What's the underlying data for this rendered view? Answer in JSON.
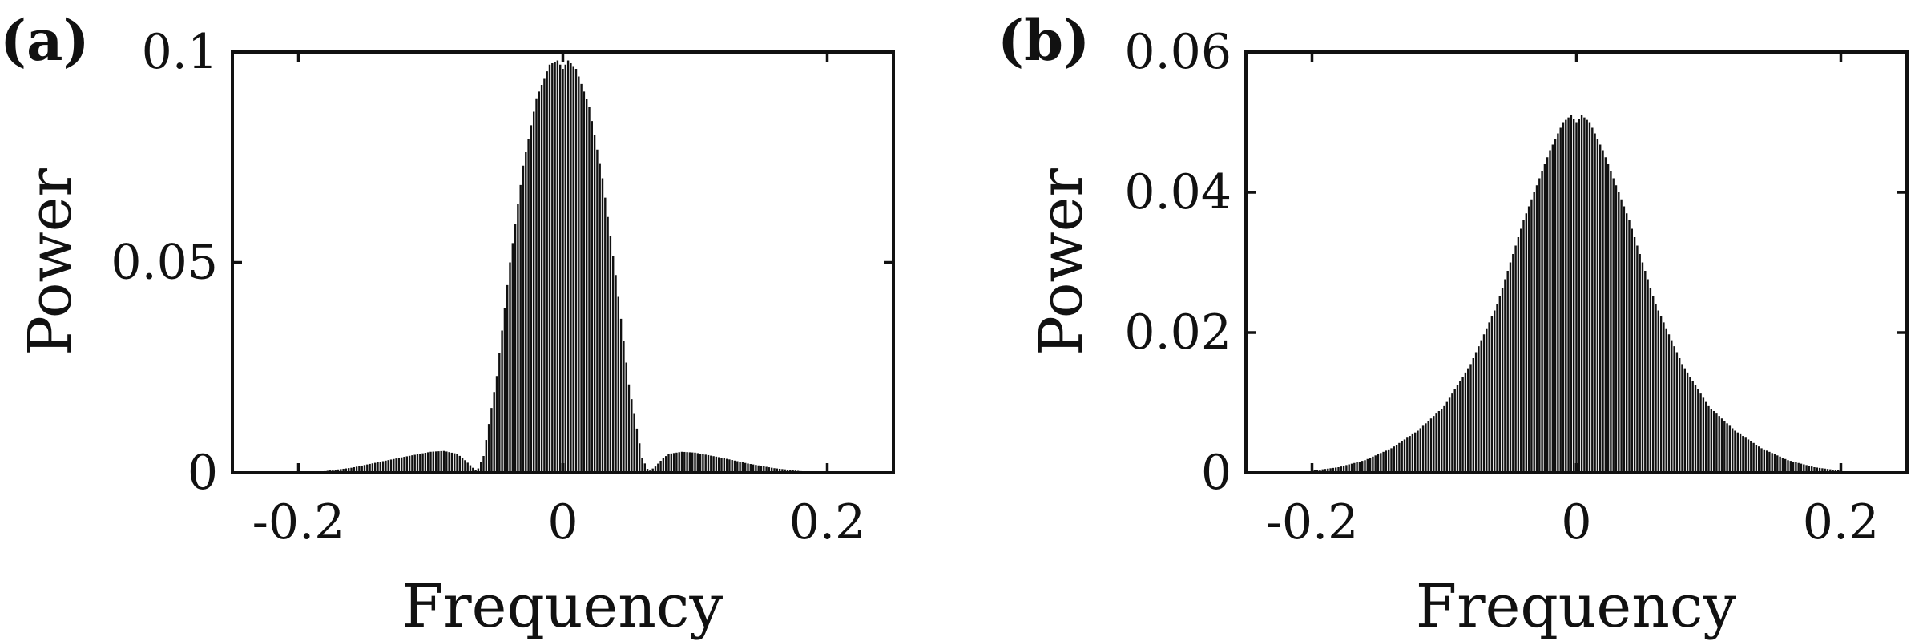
{
  "chart_data": [
    {
      "type": "bar",
      "panel_label": "(a)",
      "xlabel": "Frequency",
      "ylabel": "Power",
      "xlim": [
        -0.25,
        0.25
      ],
      "ylim": [
        0,
        0.1
      ],
      "xticks": [
        -0.2,
        0,
        0.2
      ],
      "xtick_labels": [
        "-0.2",
        "0",
        "0.2"
      ],
      "yticks": [
        0,
        0.05,
        0.1
      ],
      "ytick_labels": [
        "0",
        "0.05",
        "0.1"
      ],
      "grid": false,
      "series": [
        {
          "x": [
            -0.2,
            -0.18,
            -0.16,
            -0.14,
            -0.12,
            -0.1,
            -0.09,
            -0.08,
            -0.075,
            -0.07,
            -0.065,
            -0.06,
            -0.05,
            -0.04,
            -0.03,
            -0.02,
            -0.01,
            -0.004,
            0,
            0.004,
            0.01,
            0.02,
            0.03,
            0.04,
            0.05,
            0.06,
            0.065,
            0.07,
            0.075,
            0.08,
            0.09,
            0.1,
            0.12,
            0.14,
            0.16,
            0.18,
            0.2
          ],
          "values": [
            0.0002,
            0.0004,
            0.0012,
            0.0025,
            0.0038,
            0.005,
            0.0052,
            0.0045,
            0.0033,
            0.0018,
            0.0003,
            0.004,
            0.023,
            0.05,
            0.073,
            0.089,
            0.097,
            0.098,
            0.096,
            0.098,
            0.096,
            0.087,
            0.07,
            0.047,
            0.021,
            0.0035,
            0.0003,
            0.0015,
            0.0032,
            0.0045,
            0.005,
            0.0048,
            0.0036,
            0.0022,
            0.0011,
            0.0004,
            0.0001
          ]
        }
      ]
    },
    {
      "type": "bar",
      "panel_label": "(b)",
      "xlabel": "Frequency",
      "ylabel": "Power",
      "xlim": [
        -0.25,
        0.25
      ],
      "ylim": [
        0,
        0.06
      ],
      "xticks": [
        -0.2,
        0,
        0.2
      ],
      "xtick_labels": [
        "-0.2",
        "0",
        "0.2"
      ],
      "yticks": [
        0,
        0.02,
        0.04,
        0.06
      ],
      "ytick_labels": [
        "0",
        "0.02",
        "0.04",
        "0.06"
      ],
      "grid": false,
      "series": [
        {
          "x": [
            -0.2,
            -0.18,
            -0.16,
            -0.14,
            -0.12,
            -0.1,
            -0.08,
            -0.06,
            -0.04,
            -0.02,
            -0.01,
            -0.004,
            0,
            0.004,
            0.01,
            0.02,
            0.04,
            0.06,
            0.08,
            0.1,
            0.12,
            0.14,
            0.16,
            0.18,
            0.2
          ],
          "values": [
            0.0003,
            0.0008,
            0.0018,
            0.0035,
            0.006,
            0.0095,
            0.0155,
            0.024,
            0.036,
            0.046,
            0.05,
            0.051,
            0.05,
            0.051,
            0.05,
            0.046,
            0.036,
            0.024,
            0.0155,
            0.0095,
            0.006,
            0.0035,
            0.0018,
            0.0008,
            0.0003
          ]
        }
      ]
    }
  ]
}
